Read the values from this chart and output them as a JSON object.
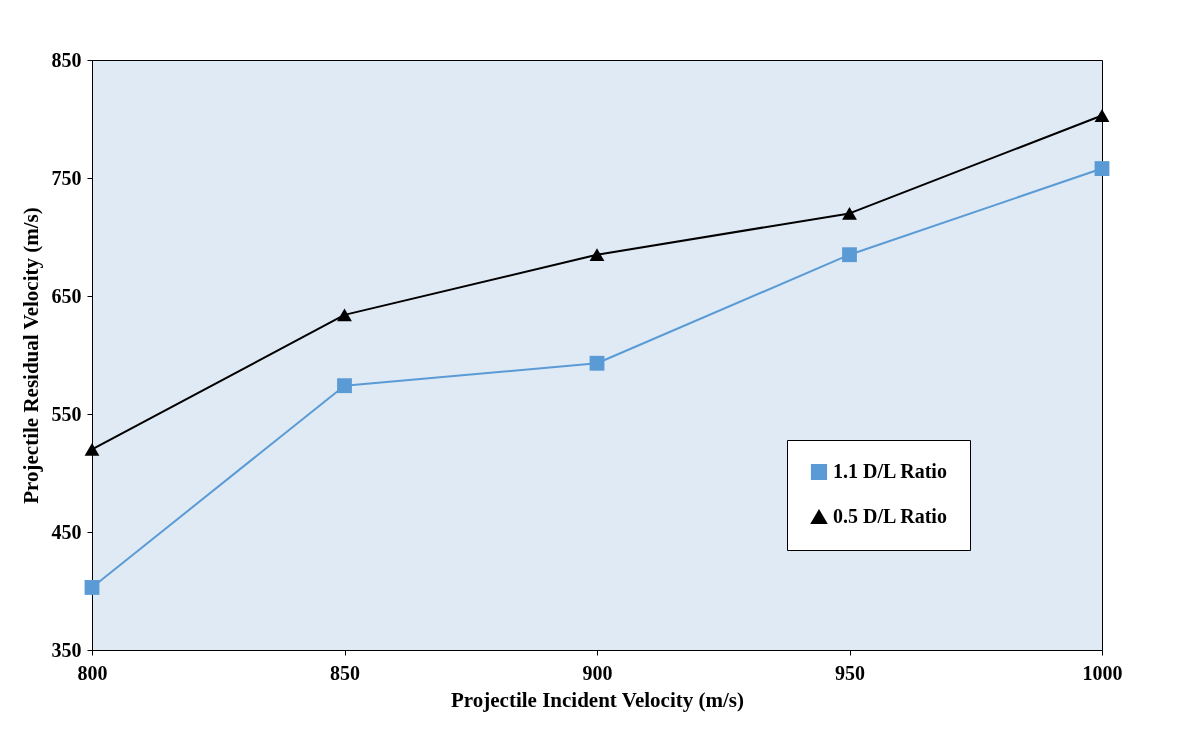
{
  "chart_data": {
    "type": "line",
    "xlabel": "Projectile Incident Velocity (m/s)",
    "ylabel": "Projectile Residual Velocity (m/s)",
    "x": [
      800,
      850,
      900,
      950,
      1000
    ],
    "series": [
      {
        "name": "1.1 D/L Ratio",
        "color": "#5b9bd5",
        "marker": "square",
        "values": [
          403,
          574,
          593,
          685,
          758
        ]
      },
      {
        "name": "0.5 D/L Ratio",
        "color": "#000000",
        "marker": "triangle",
        "values": [
          520,
          634,
          685,
          720,
          803
        ]
      }
    ],
    "xlim": [
      800,
      1000
    ],
    "xticks": [
      800,
      850,
      900,
      950,
      1000
    ],
    "ylim": [
      350,
      850
    ],
    "yticks": [
      350,
      450,
      550,
      650,
      750,
      850
    ],
    "grid": false,
    "legend": "bottom right",
    "line_style": "solid"
  }
}
